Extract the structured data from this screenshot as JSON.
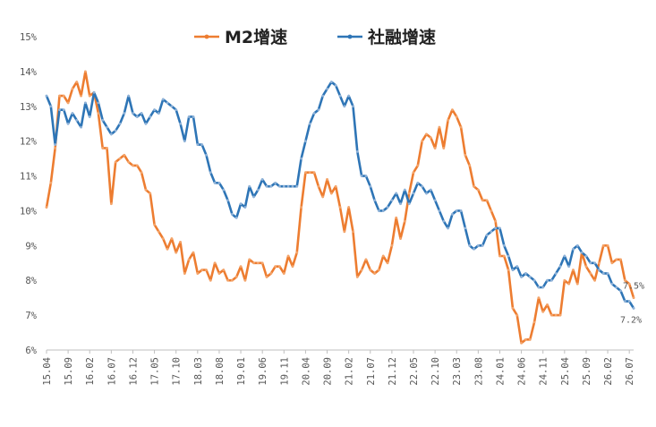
{
  "chart_data": {
    "type": "line",
    "title": "",
    "xlabel": "",
    "ylabel": "",
    "ylim": [
      6,
      15
    ],
    "y_ticks": [
      "6%",
      "7%",
      "8%",
      "9%",
      "10%",
      "11%",
      "12%",
      "13%",
      "14%",
      "15%"
    ],
    "x_tick_labels": [
      "15.04",
      "15.09",
      "16.02",
      "16.07",
      "16.12",
      "17.05",
      "17.10",
      "18.03",
      "18.08",
      "19.01",
      "19.06",
      "19.11",
      "20.04",
      "20.09",
      "21.02",
      "21.07",
      "21.12",
      "22.05",
      "22.10",
      "23.03",
      "23.08",
      "24.01",
      "24.06",
      "24.11",
      "25.04",
      "25.09",
      "26.02",
      "26.07"
    ],
    "legend_position": "top",
    "series": [
      {
        "name": "M2增速",
        "color": "#ED7D31",
        "values": [
          10.1,
          10.8,
          11.8,
          13.3,
          13.3,
          13.1,
          13.5,
          13.7,
          13.3,
          14.0,
          13.3,
          13.4,
          12.8,
          11.8,
          11.8,
          10.2,
          11.4,
          11.5,
          11.6,
          11.4,
          11.3,
          11.3,
          11.1,
          10.6,
          10.5,
          9.6,
          9.4,
          9.2,
          8.9,
          9.2,
          8.8,
          9.1,
          8.2,
          8.6,
          8.8,
          8.2,
          8.3,
          8.3,
          8.0,
          8.5,
          8.2,
          8.3,
          8.0,
          8.0,
          8.1,
          8.4,
          8.0,
          8.6,
          8.5,
          8.5,
          8.5,
          8.1,
          8.2,
          8.4,
          8.4,
          8.2,
          8.7,
          8.4,
          8.8,
          10.1,
          11.1,
          11.1,
          11.1,
          10.7,
          10.4,
          10.9,
          10.5,
          10.7,
          10.1,
          9.4,
          10.1,
          9.4,
          8.1,
          8.3,
          8.6,
          8.3,
          8.2,
          8.3,
          8.7,
          8.5,
          9.0,
          9.8,
          9.2,
          9.7,
          10.5,
          11.1,
          11.3,
          12.0,
          12.2,
          12.1,
          11.8,
          12.4,
          11.8,
          12.6,
          12.9,
          12.7,
          12.4,
          11.6,
          11.3,
          10.7,
          10.6,
          10.3,
          10.3,
          10.0,
          9.7,
          8.7,
          8.7,
          8.3,
          7.2,
          7.0,
          6.2,
          6.3,
          6.3,
          6.8,
          7.5,
          7.1,
          7.3,
          7.0,
          7.0,
          7.0,
          8.0,
          7.9,
          8.3,
          7.9,
          8.8,
          8.4,
          8.2,
          8.0,
          8.5,
          9.0,
          9.0,
          8.5,
          8.6,
          8.6,
          8.0,
          7.9,
          7.5
        ]
      },
      {
        "name": "社融增速",
        "color": "#2E75B6",
        "values": [
          13.3,
          13.0,
          11.9,
          12.9,
          12.9,
          12.5,
          12.8,
          12.6,
          12.4,
          13.1,
          12.7,
          13.4,
          13.1,
          12.6,
          12.4,
          12.2,
          12.3,
          12.5,
          12.8,
          13.3,
          12.8,
          12.7,
          12.8,
          12.5,
          12.7,
          12.9,
          12.8,
          13.2,
          13.1,
          13.0,
          12.9,
          12.5,
          12.0,
          12.7,
          12.7,
          11.9,
          11.9,
          11.6,
          11.1,
          10.8,
          10.8,
          10.6,
          10.3,
          9.9,
          9.8,
          10.2,
          10.1,
          10.7,
          10.4,
          10.6,
          10.9,
          10.7,
          10.7,
          10.8,
          10.7,
          10.7,
          10.7,
          10.7,
          10.7,
          11.5,
          12.0,
          12.5,
          12.8,
          12.9,
          13.3,
          13.5,
          13.7,
          13.6,
          13.3,
          13.0,
          13.3,
          13.0,
          11.7,
          11.0,
          11.0,
          10.7,
          10.3,
          10.0,
          10.0,
          10.1,
          10.3,
          10.5,
          10.2,
          10.6,
          10.2,
          10.5,
          10.8,
          10.7,
          10.5,
          10.6,
          10.3,
          10.0,
          9.7,
          9.5,
          9.9,
          10.0,
          10.0,
          9.5,
          9.0,
          8.9,
          9.0,
          9.0,
          9.3,
          9.4,
          9.5,
          9.5,
          9.0,
          8.7,
          8.3,
          8.4,
          8.1,
          8.2,
          8.1,
          8.0,
          7.8,
          7.8,
          8.0,
          8.0,
          8.2,
          8.4,
          8.7,
          8.4,
          8.9,
          9.0,
          8.8,
          8.7,
          8.5,
          8.5,
          8.3,
          8.2,
          8.2,
          7.9,
          7.8,
          7.7,
          7.4,
          7.4,
          7.2
        ]
      }
    ],
    "end_labels": [
      "7.5%",
      "7.2%"
    ]
  }
}
